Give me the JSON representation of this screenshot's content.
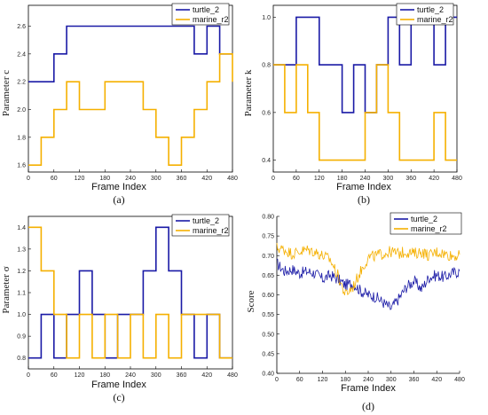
{
  "chart_data": [
    {
      "panel": "(a)",
      "type": "line",
      "xlabel": "Frame Index",
      "ylabel": "Parameter c",
      "xlim": [
        0,
        480
      ],
      "ylim": [
        1.55,
        2.75
      ],
      "xticks": [
        0,
        60,
        120,
        180,
        240,
        300,
        360,
        420,
        480
      ],
      "yticks": [
        1.6,
        1.8,
        2.0,
        2.2,
        2.4,
        2.6
      ],
      "ytick_labels": [
        "1.6",
        "1.8",
        "2.0",
        "2.2",
        "2.4",
        "2.6"
      ],
      "legend_position": "top-right",
      "series": [
        {
          "name": "turtle_2",
          "color": "#1a1aa6",
          "step": true,
          "x": [
            0,
            60,
            90,
            390,
            420,
            450,
            480
          ],
          "y": [
            2.2,
            2.4,
            2.6,
            2.4,
            2.6,
            2.4,
            2.4
          ]
        },
        {
          "name": "marine_r2",
          "color": "#f5b000",
          "step": true,
          "x": [
            0,
            30,
            60,
            90,
            120,
            180,
            270,
            300,
            330,
            360,
            390,
            420,
            450,
            480
          ],
          "y": [
            1.6,
            1.8,
            2.0,
            2.2,
            2.0,
            2.2,
            2.0,
            1.8,
            1.6,
            1.8,
            2.0,
            2.2,
            2.4,
            2.2
          ]
        }
      ]
    },
    {
      "panel": "(b)",
      "type": "line",
      "xlabel": "Frame Index",
      "ylabel": "Parameter k",
      "xlim": [
        0,
        480
      ],
      "ylim": [
        0.35,
        1.05
      ],
      "xticks": [
        0,
        60,
        120,
        180,
        240,
        300,
        360,
        420,
        480
      ],
      "yticks": [
        0.4,
        0.6,
        0.8,
        1.0
      ],
      "ytick_labels": [
        "0.4",
        "0.6",
        "0.8",
        "1.0"
      ],
      "legend_position": "top-right",
      "series": [
        {
          "name": "turtle_2",
          "color": "#1a1aa6",
          "step": true,
          "x": [
            0,
            60,
            120,
            180,
            210,
            240,
            270,
            300,
            330,
            360,
            420,
            450,
            480
          ],
          "y": [
            0.8,
            1.0,
            0.8,
            0.6,
            0.8,
            0.6,
            0.8,
            1.0,
            0.8,
            1.0,
            0.8,
            1.0,
            1.0
          ]
        },
        {
          "name": "marine_r2",
          "color": "#f5b000",
          "step": true,
          "x": [
            0,
            30,
            60,
            90,
            120,
            240,
            270,
            300,
            330,
            420,
            450,
            480
          ],
          "y": [
            0.8,
            0.6,
            0.8,
            0.6,
            0.4,
            0.6,
            0.8,
            0.6,
            0.4,
            0.6,
            0.4,
            0.4
          ]
        }
      ]
    },
    {
      "panel": "(c)",
      "type": "line",
      "xlabel": "Frame Index",
      "ylabel": "Parameter σ",
      "xlim": [
        0,
        480
      ],
      "ylim": [
        0.75,
        1.45
      ],
      "xticks": [
        0,
        60,
        120,
        180,
        240,
        300,
        360,
        420,
        480
      ],
      "yticks": [
        0.8,
        0.9,
        1.0,
        1.1,
        1.2,
        1.3,
        1.4
      ],
      "ytick_labels": [
        "0.8",
        "0.9",
        "1.0",
        "1.1",
        "1.2",
        "1.3",
        "1.4"
      ],
      "legend_position": "top-right",
      "series": [
        {
          "name": "turtle_2",
          "color": "#1a1aa6",
          "step": true,
          "x": [
            0,
            30,
            60,
            90,
            120,
            150,
            180,
            210,
            240,
            270,
            300,
            330,
            360,
            390,
            420,
            450,
            480
          ],
          "y": [
            0.8,
            1.0,
            0.8,
            1.0,
            1.2,
            1.0,
            0.8,
            1.0,
            1.0,
            1.2,
            1.4,
            1.2,
            1.0,
            0.8,
            1.0,
            0.8,
            0.8
          ]
        },
        {
          "name": "marine_r2",
          "color": "#f5b000",
          "step": true,
          "x": [
            0,
            30,
            60,
            90,
            120,
            150,
            180,
            210,
            240,
            270,
            300,
            330,
            360,
            390,
            420,
            450,
            480
          ],
          "y": [
            1.4,
            1.2,
            1.0,
            0.8,
            1.0,
            0.8,
            1.0,
            0.8,
            1.0,
            0.8,
            1.0,
            0.8,
            1.0,
            1.0,
            1.0,
            0.8,
            0.8
          ]
        }
      ]
    },
    {
      "panel": "(d)",
      "type": "line",
      "xlabel": "Frame Index",
      "ylabel": "Score",
      "xlim": [
        0,
        480
      ],
      "ylim": [
        0.4,
        0.8
      ],
      "xticks": [
        0,
        60,
        120,
        180,
        240,
        300,
        360,
        420,
        480
      ],
      "yticks": [
        0.4,
        0.45,
        0.5,
        0.55,
        0.6,
        0.65,
        0.7,
        0.75,
        0.8
      ],
      "ytick_labels": [
        "0.40",
        "0.45",
        "0.50",
        "0.55",
        "0.60",
        "0.65",
        "0.70",
        "0.75",
        "0.80"
      ],
      "legend_position": "top-right",
      "series": [
        {
          "name": "turtle_2",
          "color": "#1a1aa6",
          "step": false,
          "x": [
            0,
            20,
            40,
            60,
            80,
            100,
            120,
            140,
            160,
            180,
            200,
            220,
            240,
            260,
            280,
            300,
            320,
            340,
            360,
            380,
            400,
            420,
            440,
            460,
            480
          ],
          "y": [
            0.68,
            0.66,
            0.665,
            0.655,
            0.66,
            0.655,
            0.64,
            0.65,
            0.64,
            0.625,
            0.63,
            0.61,
            0.6,
            0.595,
            0.58,
            0.565,
            0.59,
            0.62,
            0.635,
            0.615,
            0.645,
            0.65,
            0.645,
            0.655,
            0.66
          ]
        },
        {
          "name": "marine_r2",
          "color": "#f5b000",
          "step": false,
          "x": [
            0,
            20,
            40,
            60,
            80,
            100,
            120,
            140,
            160,
            180,
            200,
            220,
            240,
            260,
            280,
            300,
            320,
            340,
            360,
            380,
            400,
            420,
            440,
            460,
            480
          ],
          "y": [
            0.72,
            0.715,
            0.705,
            0.71,
            0.715,
            0.71,
            0.7,
            0.69,
            0.65,
            0.6,
            0.62,
            0.66,
            0.695,
            0.7,
            0.705,
            0.71,
            0.705,
            0.71,
            0.705,
            0.71,
            0.7,
            0.71,
            0.705,
            0.7,
            0.7
          ]
        }
      ]
    }
  ]
}
